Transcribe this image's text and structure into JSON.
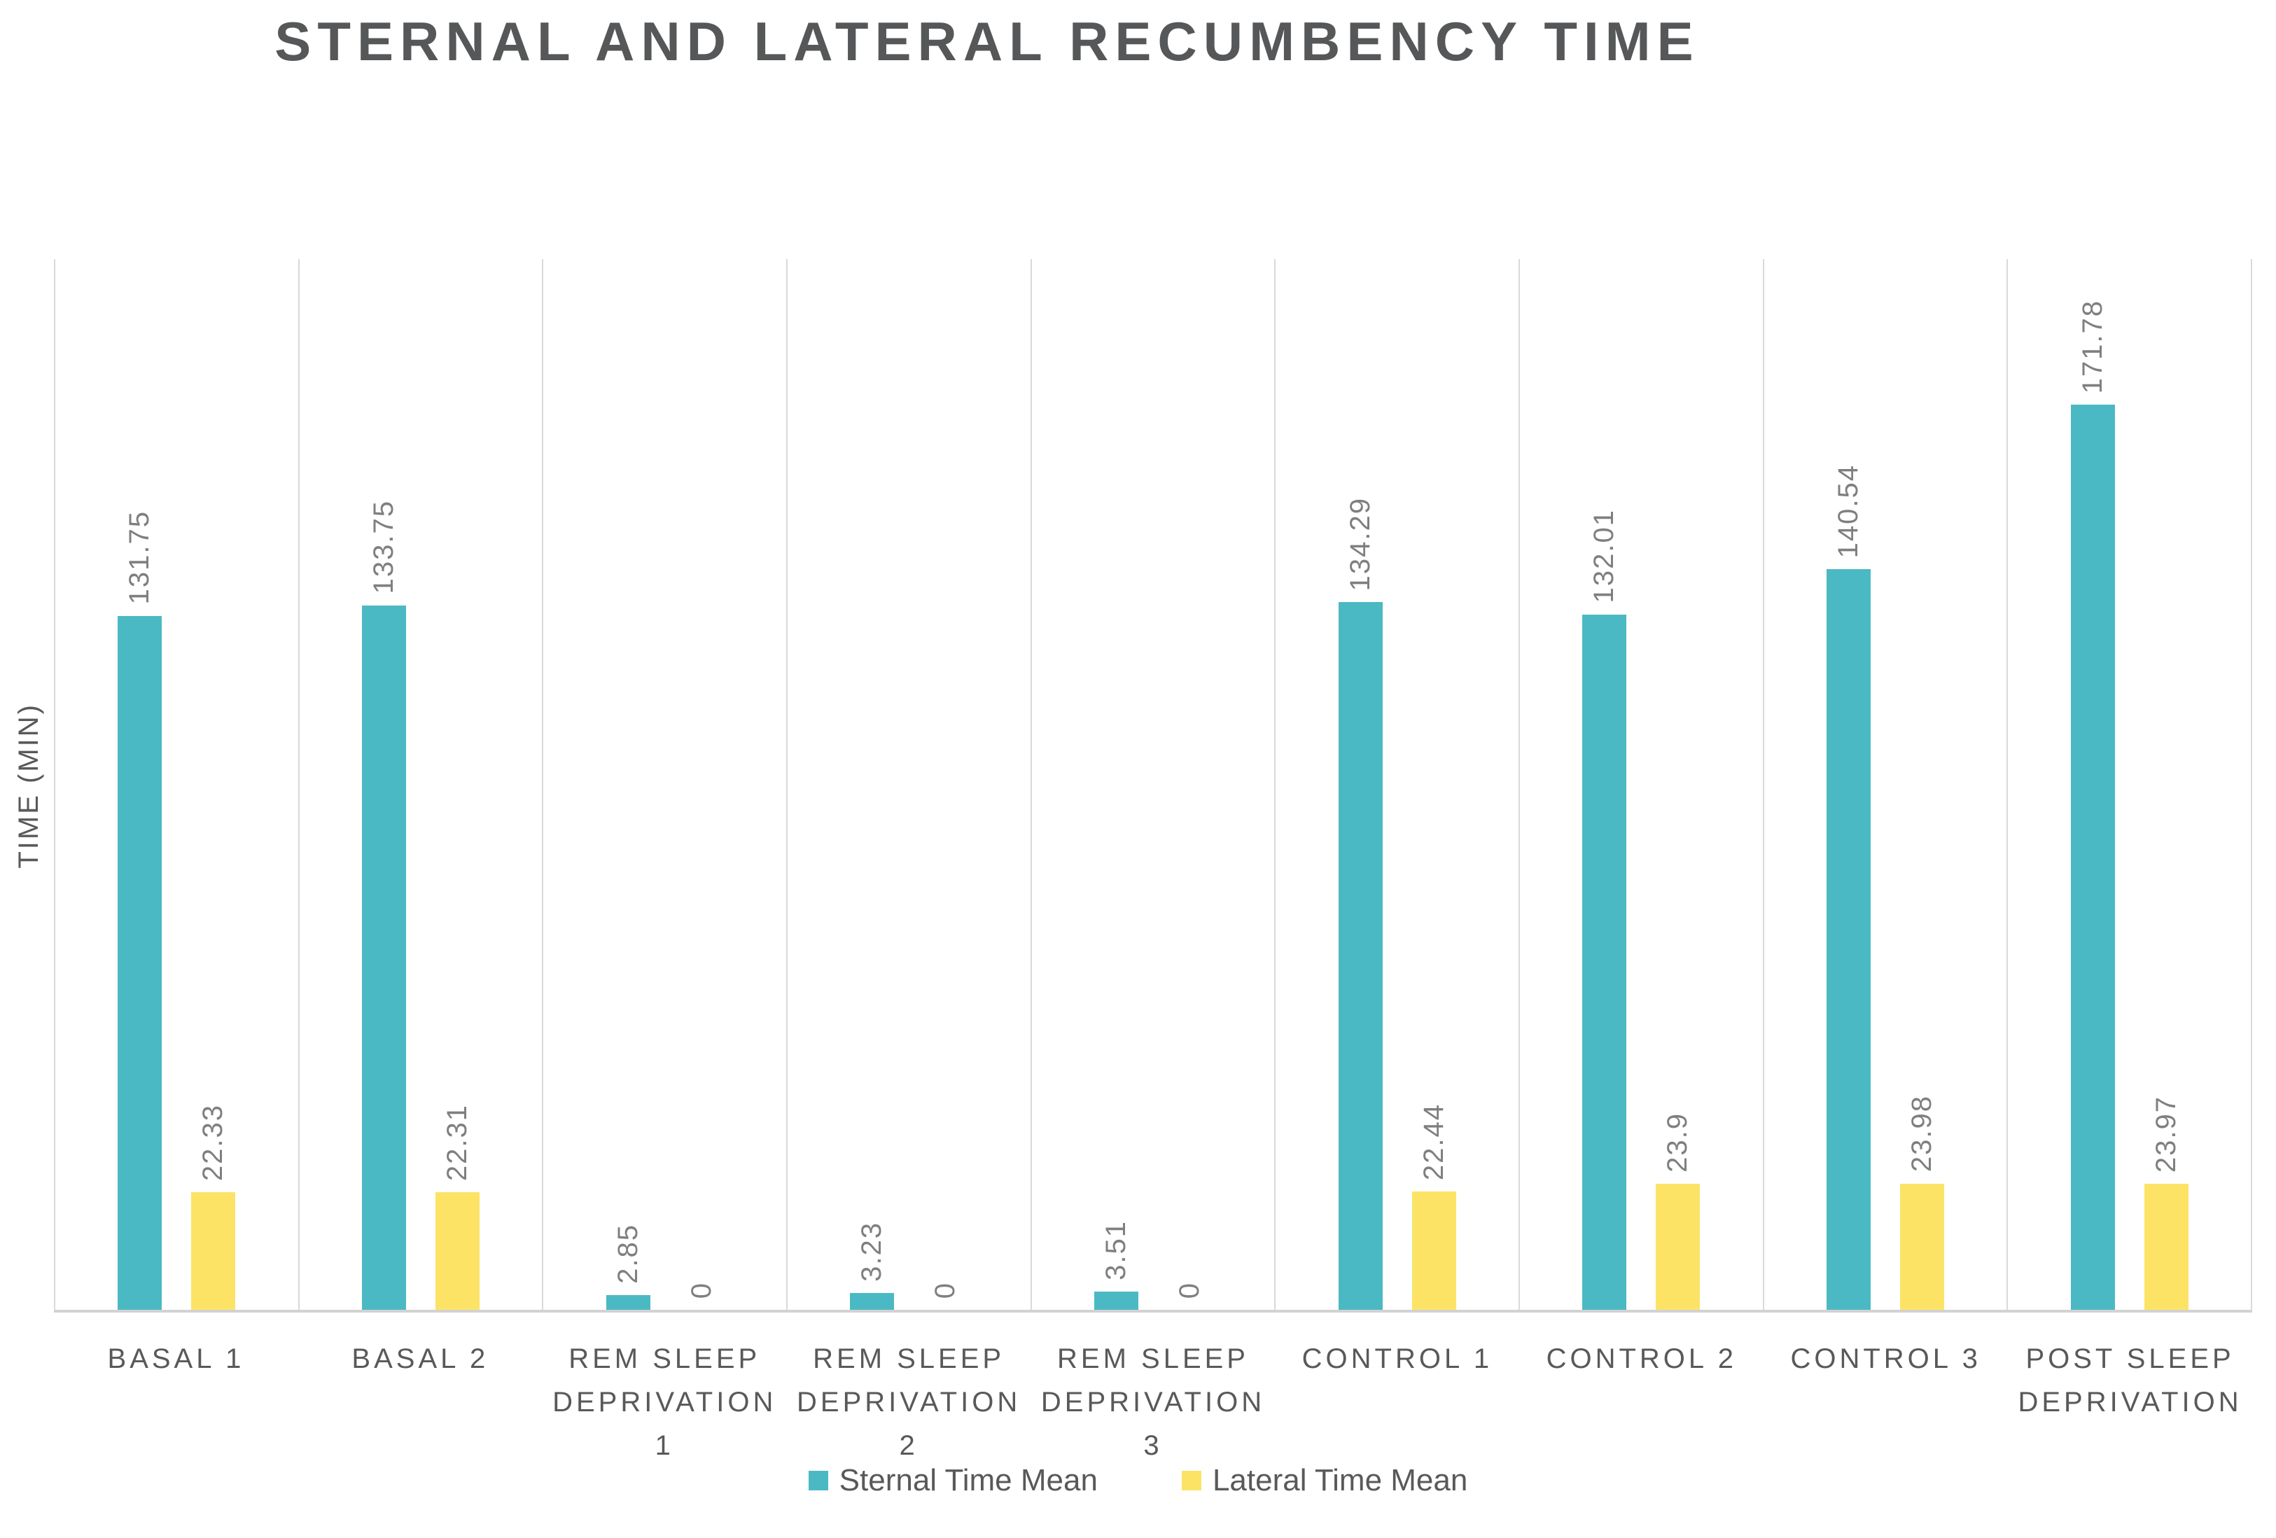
{
  "chart": {
    "title": "STERNAL AND LATERAL RECUMBENCY TIME",
    "y_axis_title": "TIME (MIN)"
  },
  "chart_data": {
    "type": "bar",
    "title": "STERNAL AND LATERAL RECUMBENCY TIME",
    "xlabel": "",
    "ylabel": "TIME (MIN)",
    "ylim": [
      0,
      200
    ],
    "grid": "vertical category separator lines only",
    "legend_position": "bottom",
    "value_label_style": "rotated 90deg above each bar",
    "categories": [
      "BASAL 1",
      "BASAL 2",
      "REM SLEEP DEPRIVATION 1",
      "REM SLEEP DEPRIVATION 2",
      "REM SLEEP DEPRIVATION 3",
      "CONTROL 1",
      "CONTROL 2",
      "CONTROL 3",
      "POST SLEEP DEPRIVATION"
    ],
    "category_label_lines": [
      [
        "BASAL 1"
      ],
      [
        "BASAL 2"
      ],
      [
        "REM SLEEP",
        "DEPRIVATION",
        "1"
      ],
      [
        "REM SLEEP",
        "DEPRIVATION",
        "2"
      ],
      [
        "REM SLEEP",
        "DEPRIVATION",
        "3"
      ],
      [
        "CONTROL 1"
      ],
      [
        "CONTROL 2"
      ],
      [
        "CONTROL 3"
      ],
      [
        "POST SLEEP",
        "DEPRIVATION"
      ]
    ],
    "series": [
      {
        "name": "Sternal Time Mean",
        "color": "#4BB9C4",
        "values": [
          131.75,
          133.75,
          2.85,
          3.23,
          3.51,
          134.29,
          132.01,
          140.54,
          171.78
        ],
        "labels": [
          "131.75",
          "133.75",
          "2.85",
          "3.23",
          "3.51",
          "134.29",
          "132.01",
          "140.54",
          "171.78"
        ]
      },
      {
        "name": "Lateral Time Mean",
        "color": "#FCE366",
        "values": [
          22.33,
          22.31,
          0,
          0,
          0,
          22.44,
          23.9,
          23.98,
          23.97
        ],
        "labels": [
          "22.33",
          "22.31",
          "0",
          "0",
          "0",
          "22.44",
          "23.9",
          "23.98",
          "23.97"
        ]
      }
    ]
  },
  "colors": {
    "sternal_teal": "#4BB9C4",
    "lateral_yellow": "#FCE366",
    "title_gray": "#555759",
    "label_gray": "#595959",
    "value_label_gray": "#7F7F7F",
    "gridline_gray": "#D9D9D9"
  }
}
